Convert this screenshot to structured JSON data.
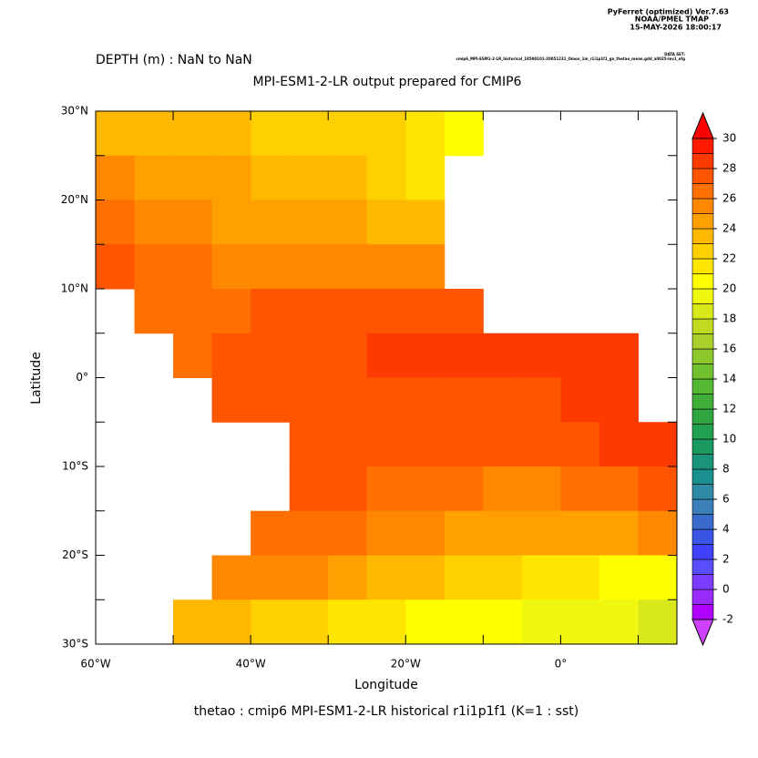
{
  "header": {
    "program": "PyFerret (optimized) Ver.7.63",
    "org": "NOAA/PMEL TMAP",
    "date": "15-MAY-2026 18:00:17",
    "dataset_label": "DATA SET:",
    "dataset": "cmip6_MPI-ESM1-2-LR_historical_18500101-20051231_Omon_1m_r1i1p1f1_gn_thetao_mean.gdd_all025-lev1_ofg"
  },
  "chart_data": {
    "type": "map",
    "subtitle": "DEPTH (m) : NaN to NaN",
    "title": "MPI-ESM1-2-LR output prepared for CMIP6",
    "x_label": "Longitude",
    "y_label": "Latitude",
    "footer": "thetao : cmip6 MPI-ESM1-2-LR historical r1i1p1f1   (K=1 : sst)",
    "xlim": [
      -60,
      15
    ],
    "ylim": [
      -30,
      30
    ],
    "xticks": [
      {
        "value": -60,
        "label": "60°W"
      },
      {
        "value": -40,
        "label": "40°W"
      },
      {
        "value": -20,
        "label": "20°W"
      },
      {
        "value": 0,
        "label": "0°"
      }
    ],
    "xminor": [
      -50,
      -30,
      -10,
      10
    ],
    "yticks": [
      {
        "value": 30,
        "label": "30°N"
      },
      {
        "value": 20,
        "label": "20°N"
      },
      {
        "value": 10,
        "label": "10°N"
      },
      {
        "value": 0,
        "label": "0°"
      },
      {
        "value": -10,
        "label": "10°S"
      },
      {
        "value": -20,
        "label": "20°S"
      },
      {
        "value": -30,
        "label": "30°S"
      }
    ],
    "yminor": [
      25,
      15,
      5,
      -5,
      -15,
      -25
    ],
    "field": {
      "x": [
        -57.5,
        -52.5,
        -47.5,
        -42.5,
        -37.5,
        -32.5,
        -27.5,
        -22.5,
        -17.5,
        -12.5,
        -7.5,
        -2.5,
        2.5,
        7.5,
        12.5
      ],
      "y": [
        27.5,
        22.5,
        17.5,
        12.5,
        7.5,
        2.5,
        -2.5,
        -7.5,
        -12.5,
        -17.5,
        -22.5,
        -27.5
      ],
      "values": [
        [
          23.5,
          23,
          23,
          23,
          22.5,
          22.5,
          22,
          22,
          21,
          20,
          null,
          null,
          null,
          null,
          null
        ],
        [
          25,
          24.5,
          24,
          24,
          23.5,
          23,
          23,
          22.5,
          21,
          null,
          null,
          null,
          null,
          null,
          null
        ],
        [
          26,
          25.5,
          25,
          24.5,
          24.5,
          24,
          24,
          23.5,
          23,
          null,
          null,
          null,
          null,
          null,
          null
        ],
        [
          27,
          26.5,
          26,
          25.5,
          25.5,
          25,
          25,
          25,
          25.5,
          null,
          null,
          null,
          null,
          null,
          null
        ],
        [
          null,
          26,
          26.5,
          26.5,
          27,
          27,
          27.5,
          27.5,
          27.5,
          27.5,
          null,
          null,
          null,
          null,
          null
        ],
        [
          null,
          null,
          26.5,
          27,
          27,
          27.5,
          27.5,
          28,
          28.5,
          28.5,
          28.5,
          28.5,
          28.5,
          28.5,
          null
        ],
        [
          null,
          null,
          null,
          27.5,
          27.5,
          27.5,
          27.5,
          27.5,
          27,
          27,
          27,
          27.5,
          28,
          28.5,
          null
        ],
        [
          null,
          null,
          null,
          null,
          null,
          27.5,
          27.5,
          27,
          27,
          27,
          27,
          27,
          27.5,
          28,
          28
        ],
        [
          null,
          null,
          null,
          null,
          null,
          27,
          27,
          26.5,
          26.5,
          26,
          25.5,
          25.5,
          26,
          26.5,
          27
        ],
        [
          null,
          null,
          null,
          null,
          26.5,
          26.5,
          26,
          25.5,
          25,
          24.5,
          24,
          24,
          24,
          24.5,
          25.5
        ],
        [
          null,
          null,
          null,
          25.5,
          25.5,
          25,
          24,
          23.5,
          23,
          22.5,
          22,
          21.5,
          21,
          20.5,
          20
        ],
        [
          null,
          null,
          23.5,
          23,
          22.5,
          22,
          21.5,
          21,
          20.5,
          20,
          20,
          19.5,
          19,
          19,
          18.5
        ]
      ]
    },
    "colorbar": {
      "ticks": [
        -2,
        0,
        2,
        4,
        6,
        8,
        10,
        12,
        14,
        16,
        18,
        20,
        22,
        24,
        26,
        28,
        30
      ],
      "levels": [
        -2,
        -1,
        0,
        1,
        2,
        3,
        4,
        5,
        6,
        7,
        8,
        9,
        10,
        11,
        12,
        13,
        14,
        15,
        16,
        17,
        18,
        19,
        20,
        21,
        22,
        23,
        24,
        25,
        26,
        27,
        28,
        29,
        30
      ],
      "colors": [
        "#b000ff",
        "#9a2bff",
        "#7a3cff",
        "#5a4dff",
        "#4040ff",
        "#3a55e6",
        "#3a6acc",
        "#3a7fb8",
        "#2f8aa6",
        "#1a8f90",
        "#1a9478",
        "#1a9960",
        "#20a050",
        "#30a640",
        "#40ae38",
        "#55b834",
        "#70c030",
        "#8cc82c",
        "#a8d028",
        "#c0da20",
        "#d8e818",
        "#f0f810",
        "#ffff00",
        "#ffe600",
        "#ffd000",
        "#ffb800",
        "#ffa000",
        "#ff8800",
        "#ff7000",
        "#ff5400",
        "#ff3a00",
        "#ff1a00"
      ],
      "under_color": "#d040ff",
      "over_color": "#ff0000"
    }
  }
}
